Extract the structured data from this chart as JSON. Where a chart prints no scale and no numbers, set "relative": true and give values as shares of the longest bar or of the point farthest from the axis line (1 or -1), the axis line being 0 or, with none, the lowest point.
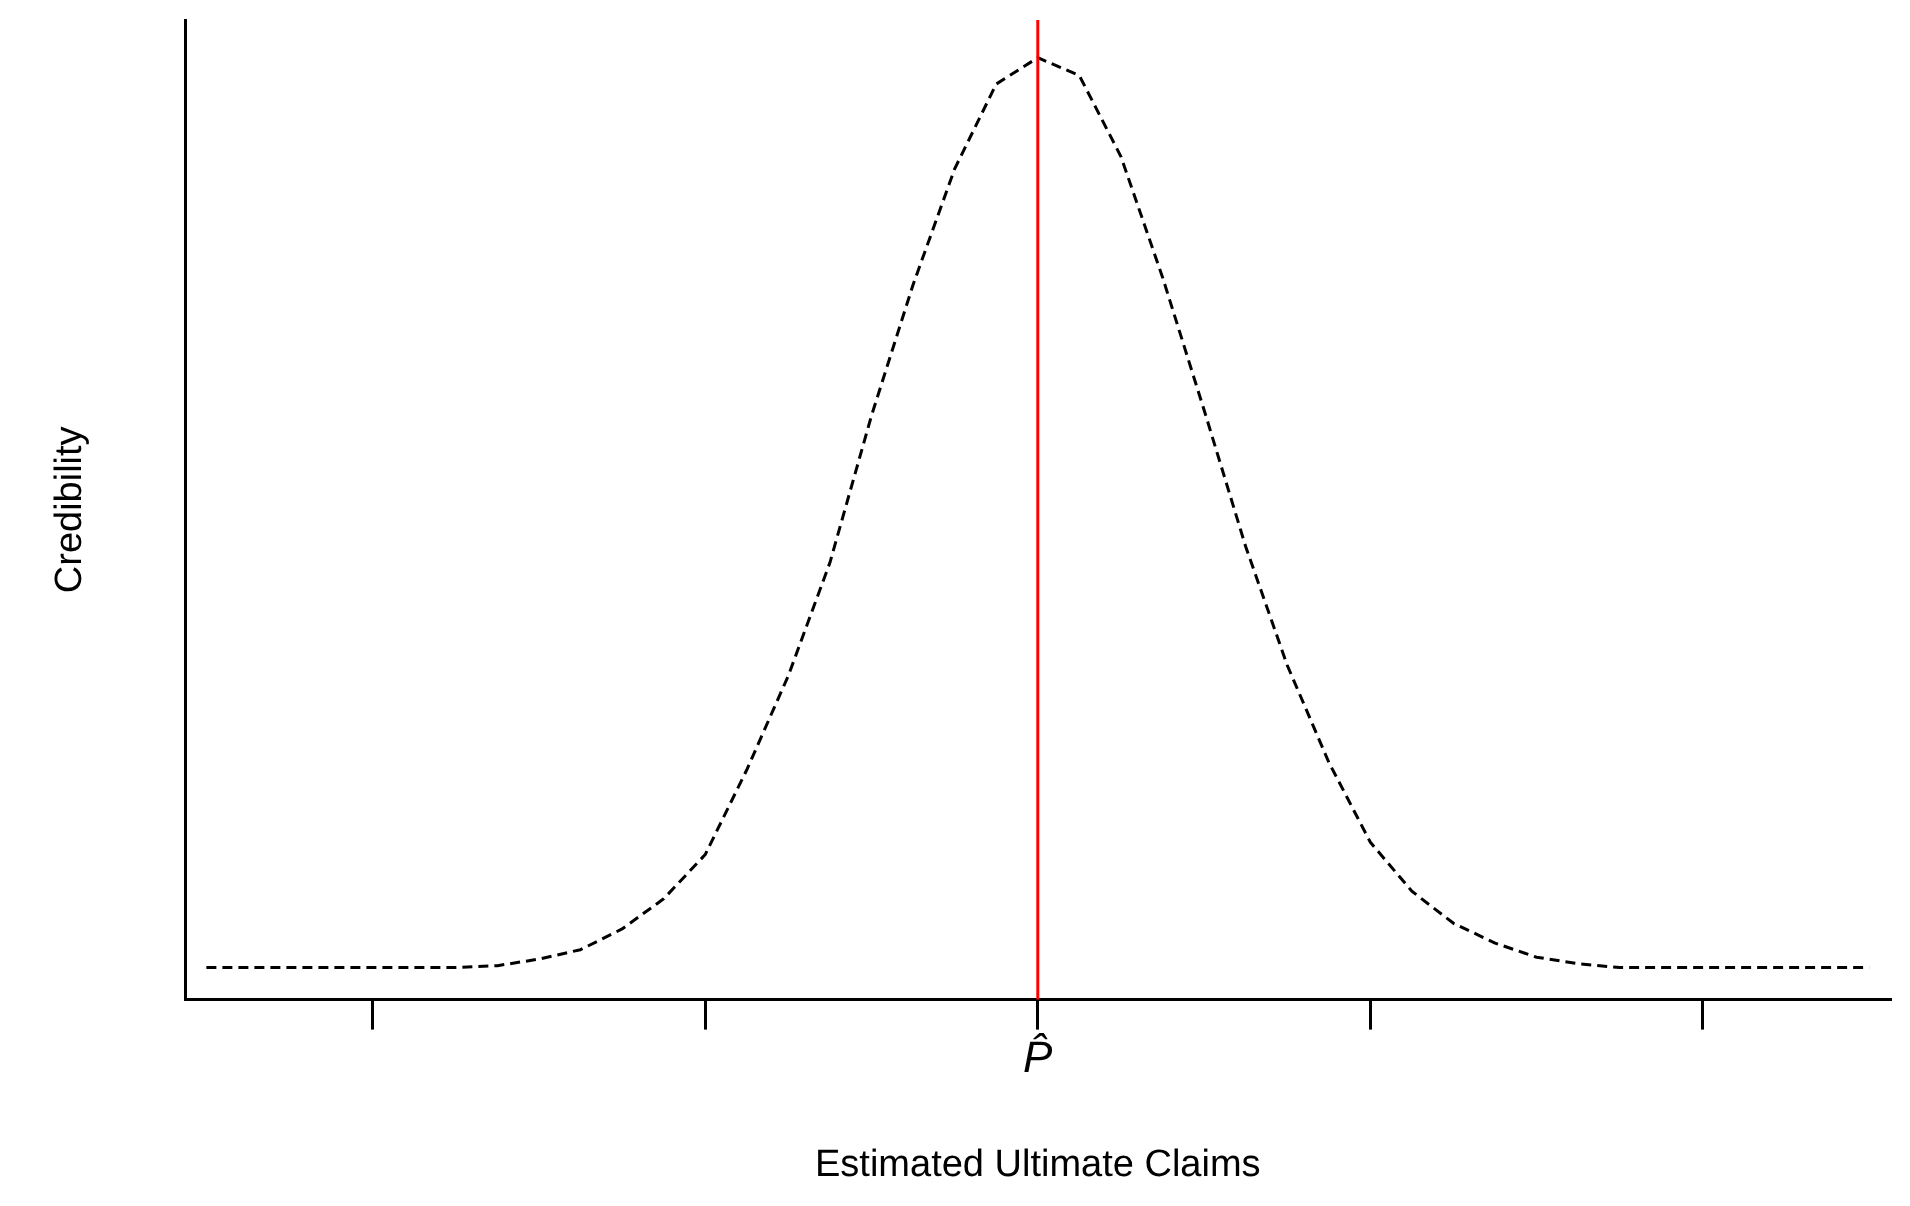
{
  "chart_data": {
    "type": "line",
    "xlabel": "Estimated Ultimate Claims",
    "ylabel": "Credibility",
    "relative": true,
    "marker": "none",
    "line_style": "dashed",
    "categories": [
      null,
      null,
      null,
      null,
      null,
      null,
      null,
      null,
      null,
      null,
      null,
      null,
      null,
      null,
      null,
      null,
      null,
      null,
      null,
      null,
      null,
      null,
      null,
      null,
      null,
      null,
      null,
      null,
      null,
      null,
      null,
      null,
      null,
      null,
      null,
      null,
      null,
      null,
      null,
      null,
      null
    ],
    "series": [
      {
        "color": "#000000",
        "values": [
          0.034,
          0.034,
          0.034,
          0.034,
          0.034,
          0.034,
          0.034,
          0.036,
          0.043,
          0.053,
          0.075,
          0.107,
          0.154,
          0.244,
          0.344,
          0.464,
          0.62,
          0.759,
          0.882,
          0.972,
          1,
          0.981,
          0.895,
          0.767,
          0.626,
          0.481,
          0.355,
          0.252,
          0.167,
          0.115,
          0.081,
          0.06,
          0.045,
          0.038,
          0.034,
          0.034,
          0.034,
          0.034,
          0.034,
          0.034,
          0.034
        ]
      }
    ],
    "ref_lines": [
      {
        "axis": "x",
        "label": "P̂",
        "color": "#ff0000"
      }
    ]
  }
}
